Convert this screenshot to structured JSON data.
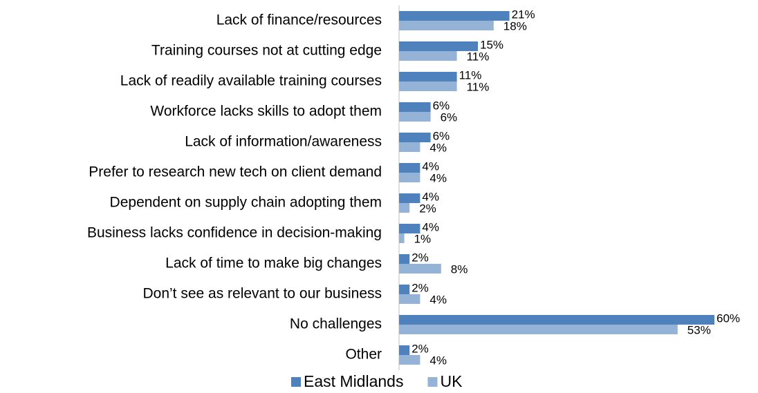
{
  "chart_data": {
    "type": "bar",
    "orientation": "horizontal",
    "categories": [
      "Lack of finance/resources",
      "Training courses not at cutting edge",
      "Lack of readily available training courses",
      "Workforce lacks skills to adopt them",
      "Lack of information/awareness",
      "Prefer to research new tech on client demand",
      "Dependent on supply chain adopting them",
      "Business lacks confidence in decision-making",
      "Lack of time to make big changes",
      "Don’t see as relevant to our business",
      "No challenges",
      "Other"
    ],
    "series": [
      {
        "name": "East Midlands",
        "color": "#4f81bd",
        "values": [
          21,
          15,
          11,
          6,
          6,
          4,
          4,
          4,
          2,
          2,
          60,
          2
        ],
        "value_labels": [
          "21%",
          "15%",
          "11%",
          "6%",
          "6%",
          "4%",
          "4%",
          "4%",
          "2%",
          "2%",
          "60%",
          "2%"
        ]
      },
      {
        "name": "UK",
        "color": "#95b3d7",
        "values": [
          18,
          11,
          11,
          6,
          4,
          4,
          2,
          1,
          8,
          4,
          53,
          4
        ],
        "value_labels": [
          "18%",
          "11%",
          "11%",
          "6%",
          "4%",
          "4%",
          "2%",
          "1%",
          "8%",
          "4%",
          "53%",
          "4%"
        ]
      }
    ],
    "xlim": [
      0,
      60
    ],
    "legend": "bottom"
  }
}
